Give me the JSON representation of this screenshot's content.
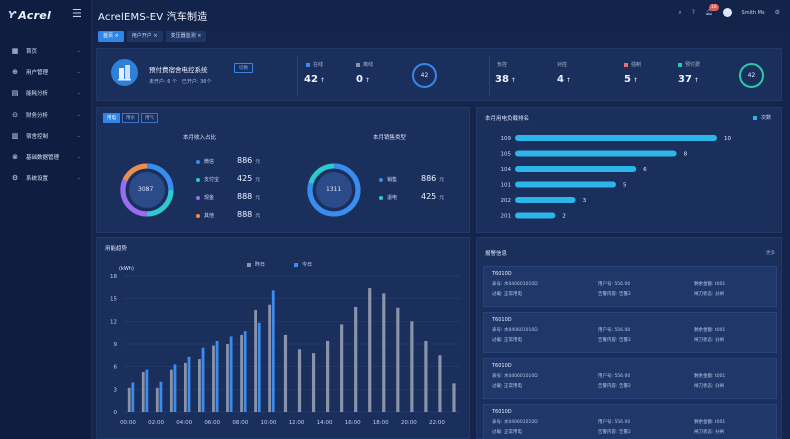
{
  "brand": {
    "logo_text": "Acrel"
  },
  "header": {
    "title": "AcrelEMS-EV 汽车制造",
    "badge": "10",
    "user": "Smith Ms"
  },
  "sidebar": {
    "items": [
      {
        "label": "首页",
        "icon": "home-icon",
        "glyph": "▦"
      },
      {
        "label": "用户管理",
        "icon": "user-icon",
        "glyph": "⊕"
      },
      {
        "label": "能耗分析",
        "icon": "chart-icon",
        "glyph": "▤"
      },
      {
        "label": "财务分析",
        "icon": "finance-icon",
        "glyph": "⊙"
      },
      {
        "label": "宿舍控制",
        "icon": "building-icon",
        "glyph": "▥"
      },
      {
        "label": "基础数据管理",
        "icon": "database-icon",
        "glyph": "⊗"
      },
      {
        "label": "系统设置",
        "icon": "settings-icon",
        "glyph": "⚙"
      }
    ]
  },
  "tabs": [
    {
      "label": "首页"
    },
    {
      "label": "用户开户"
    },
    {
      "label": "变压器监测"
    }
  ],
  "summary": {
    "system_name": "预付费宿舍电控系统",
    "system_button": "切换",
    "not_opened": "未开户: 6 个",
    "opened": "已开户: 36个",
    "stats": [
      {
        "label": "在线",
        "value": "42",
        "color": "#3b8cf0"
      },
      {
        "label": "离线",
        "value": "0",
        "color": "#8a95ad"
      },
      {
        "label": "负控",
        "value": "38",
        "color": ""
      },
      {
        "label": "对控",
        "value": "4",
        "color": ""
      },
      {
        "label": "强制",
        "value": "5",
        "color": "#f06b6b"
      },
      {
        "label": "预付费",
        "value": "37",
        "color": "#2cc9a5"
      }
    ],
    "ring_left": "42",
    "ring_right": "42"
  },
  "income": {
    "segments": [
      "用电",
      "用水",
      "用气"
    ],
    "title_left": "本月收入占比",
    "title_right": "本月销售类型",
    "donut_left": "3087",
    "donut_right": "1311",
    "left_items": [
      {
        "label": "微信",
        "value": "886",
        "unit": "元",
        "color": "#3b8cf0"
      },
      {
        "label": "支付宝",
        "value": "425",
        "unit": "元",
        "color": "#2cc9d0"
      },
      {
        "label": "现金",
        "value": "888",
        "unit": "元",
        "color": "#9a6cf0"
      },
      {
        "label": "其他",
        "value": "888",
        "unit": "元",
        "color": "#f08b4a"
      }
    ],
    "right_items": [
      {
        "label": "销售",
        "value": "886",
        "unit": "元",
        "color": "#3b8cf0"
      },
      {
        "label": "退电",
        "value": "425",
        "unit": "元",
        "color": "#2cc9d0"
      }
    ]
  },
  "rank": {
    "title": "本月用电负载排名",
    "legend": "次数",
    "rows": [
      {
        "name": "109",
        "value": 10
      },
      {
        "name": "105",
        "value": 8
      },
      {
        "name": "104",
        "value": 6
      },
      {
        "name": "101",
        "value": 5
      },
      {
        "name": "202",
        "value": 3
      },
      {
        "name": "201",
        "value": 2
      }
    ]
  },
  "alarm": {
    "title": "报警信息",
    "more": "更多",
    "cards": [
      {
        "id": "T6010D",
        "meter": "表号: 水040601010D",
        "user": "用户号: 556.00",
        "balance": "剩余金额: t001",
        "status": "过载: 正常用电",
        "alarm": "告警内容: 告警2",
        "switch": "闸刀状态: 分闸"
      },
      {
        "id": "T6010D",
        "meter": "表号: 水040601010D",
        "user": "用户号: 556.00",
        "balance": "剩余金额: t001",
        "status": "过载: 正常用电",
        "alarm": "告警内容: 告警2",
        "switch": "闸刀状态: 分闸"
      },
      {
        "id": "T6010D",
        "meter": "表号: 水040601010D",
        "user": "用户号: 556.00",
        "balance": "剩余金额: t001",
        "status": "过载: 正常用电",
        "alarm": "告警内容: 告警2",
        "switch": "闸刀状态: 分闸"
      },
      {
        "id": "T6010D",
        "meter": "表号: 水040601010D",
        "user": "用户号: 556.00",
        "balance": "剩余金额: t001",
        "status": "过载: 正常用电",
        "alarm": "告警内容: 告警2",
        "switch": "闸刀状态: 分闸"
      }
    ]
  },
  "chart_data": {
    "type": "bar",
    "title": "用能趋势",
    "ylabel": "(kWh)",
    "ylim": [
      0,
      18
    ],
    "yticks": [
      0,
      3,
      6,
      9,
      12,
      15,
      18
    ],
    "xticks": [
      "00:00",
      "02:00",
      "04:00",
      "06:00",
      "08:00",
      "10:00",
      "12:00",
      "14:00",
      "16:00",
      "18:00",
      "20:00",
      "22:00"
    ],
    "categories": [
      "0",
      "1",
      "2",
      "3",
      "4",
      "5",
      "6",
      "7",
      "8",
      "9",
      "10",
      "11",
      "12",
      "13",
      "14",
      "15",
      "16",
      "17",
      "18",
      "19",
      "20",
      "21",
      "22",
      "23"
    ],
    "series": [
      {
        "name": "昨日",
        "color": "#8a93a8",
        "values": [
          3.2,
          5.3,
          3.2,
          5.6,
          6.5,
          7.0,
          8.8,
          9.0,
          10.2,
          13.5,
          14.2,
          10.2,
          8.3,
          7.8,
          9.4,
          11.6,
          13.9,
          16.4,
          15.7,
          13.8,
          12.0,
          9.4,
          7.5,
          3.8
        ]
      },
      {
        "name": "今日",
        "color": "#3b8cf0",
        "values": [
          3.9,
          5.6,
          4.0,
          6.3,
          7.3,
          8.5,
          9.4,
          10.0,
          10.7,
          11.8,
          16.1,
          null,
          null,
          null,
          null,
          null,
          null,
          null,
          null,
          null,
          null,
          null,
          null,
          null
        ]
      }
    ]
  }
}
